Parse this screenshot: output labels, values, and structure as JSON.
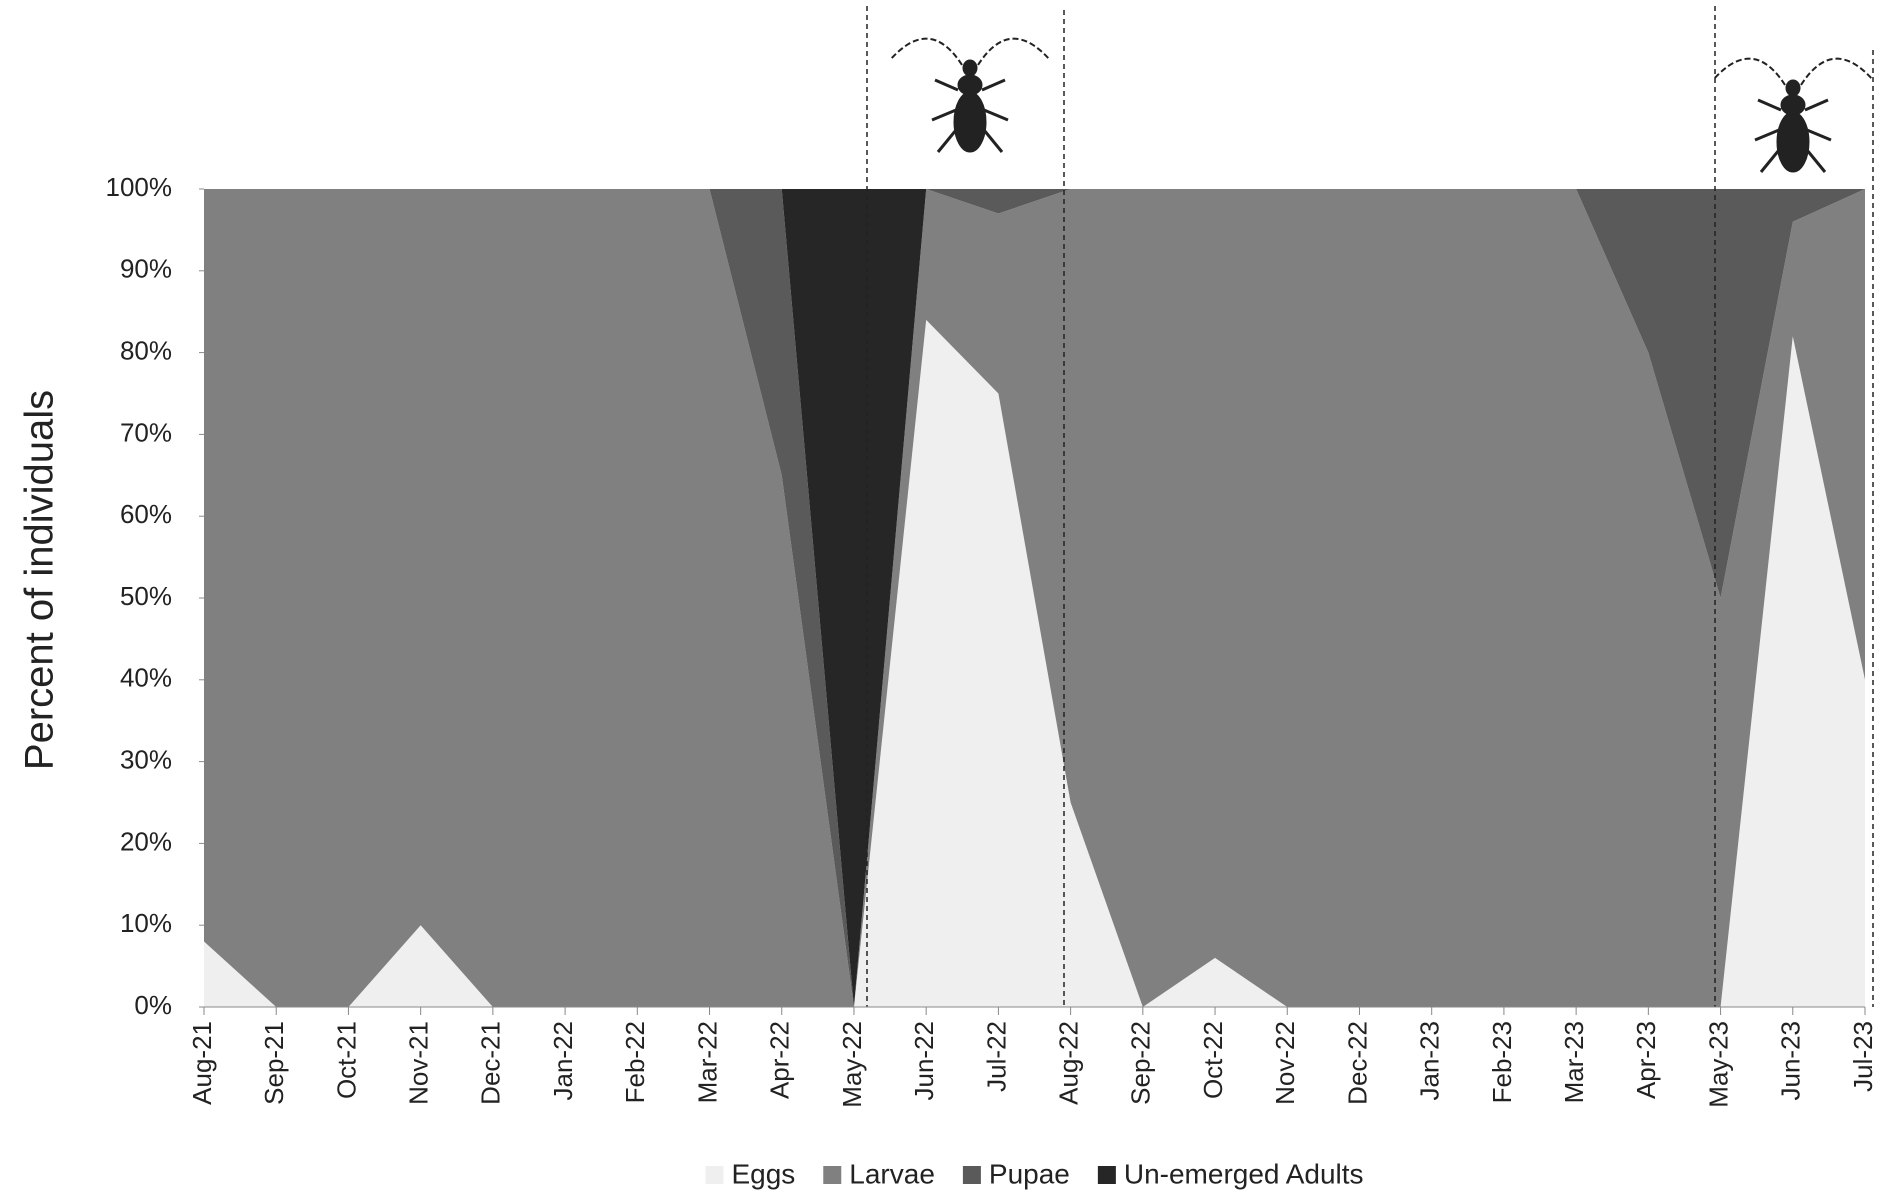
{
  "chart_data": {
    "type": "stacked-area",
    "y_label": "Percent of individuals",
    "categories": [
      "Aug-21",
      "Sep-21",
      "Oct-21",
      "Nov-21",
      "Dec-21",
      "Jan-22",
      "Feb-22",
      "Mar-22",
      "Apr-22",
      "May-22",
      "Jun-22",
      "Jul-22",
      "Aug-22",
      "Sep-22",
      "Oct-22",
      "Nov-22",
      "Dec-22",
      "Jan-23",
      "Feb-23",
      "Mar-23",
      "Apr-23",
      "May-23",
      "Jun-23",
      "Jul-23"
    ],
    "series": [
      {
        "name": "Eggs",
        "color": "#efefef",
        "values": [
          8,
          0,
          0,
          10,
          0,
          0,
          0,
          0,
          0,
          0,
          84,
          75,
          25,
          0,
          6,
          0,
          0,
          0,
          0,
          0,
          0,
          0,
          82,
          40
        ]
      },
      {
        "name": "Larvae",
        "color": "#808080",
        "values": [
          92,
          100,
          100,
          90,
          100,
          100,
          100,
          100,
          65,
          0,
          16,
          22,
          75,
          100,
          94,
          100,
          100,
          100,
          100,
          100,
          80,
          50,
          14,
          60
        ]
      },
      {
        "name": "Pupae",
        "color": "#5a5a5a",
        "values": [
          0,
          0,
          0,
          0,
          0,
          0,
          0,
          0,
          35,
          0,
          0,
          3,
          0,
          0,
          0,
          0,
          0,
          0,
          0,
          0,
          20,
          50,
          4,
          0
        ]
      },
      {
        "name": "Un-emerged Adults",
        "color": "#262626",
        "values": [
          0,
          0,
          0,
          0,
          0,
          0,
          0,
          0,
          0,
          100,
          0,
          0,
          0,
          0,
          0,
          0,
          0,
          0,
          0,
          0,
          0,
          0,
          0,
          0
        ]
      }
    ],
    "ylim": [
      0,
      100
    ],
    "yticks": [
      {
        "value": 0,
        "label": "0%"
      },
      {
        "value": 10,
        "label": "10%"
      },
      {
        "value": 20,
        "label": "20%"
      },
      {
        "value": 30,
        "label": "30%"
      },
      {
        "value": 40,
        "label": "40%"
      },
      {
        "value": 50,
        "label": "50%"
      },
      {
        "value": 60,
        "label": "60%"
      },
      {
        "value": 70,
        "label": "70%"
      },
      {
        "value": 80,
        "label": "80%"
      },
      {
        "value": 90,
        "label": "90%"
      },
      {
        "value": 100,
        "label": "100%"
      }
    ],
    "legend": "bottom"
  }
}
